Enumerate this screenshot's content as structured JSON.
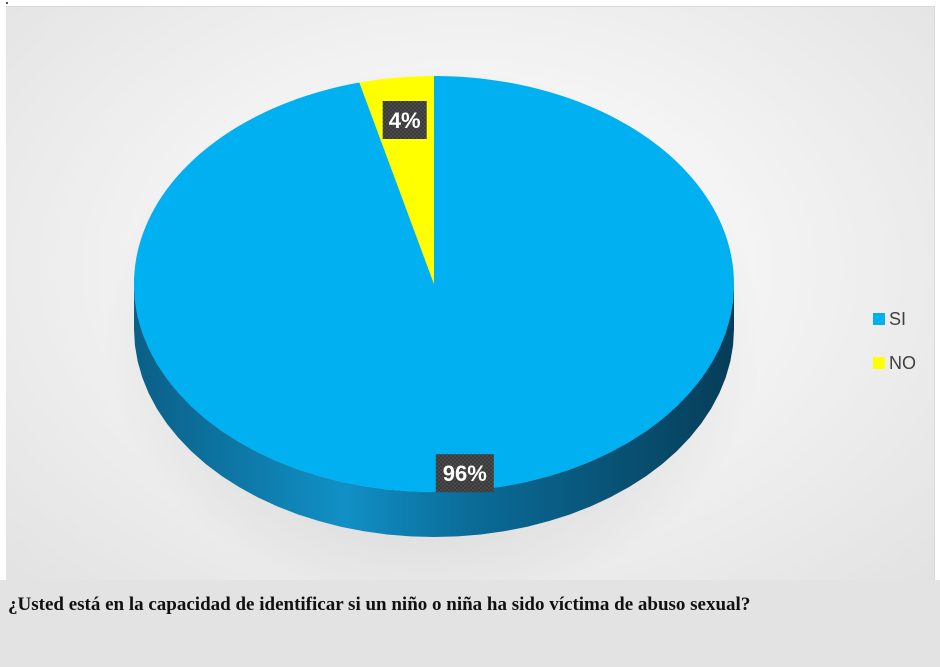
{
  "chart_data": {
    "type": "pie",
    "categories": [
      "SI",
      "NO"
    ],
    "values": [
      96,
      4
    ],
    "data_labels": [
      "96%",
      "4%"
    ],
    "colors": [
      "#00b0f0",
      "#ffff00"
    ],
    "legend_position": "right",
    "title": ""
  },
  "caption": {
    "text": "¿Usted está en la capacidad de identificar si un niño o niña ha sido víctima de abuso sexual?"
  }
}
